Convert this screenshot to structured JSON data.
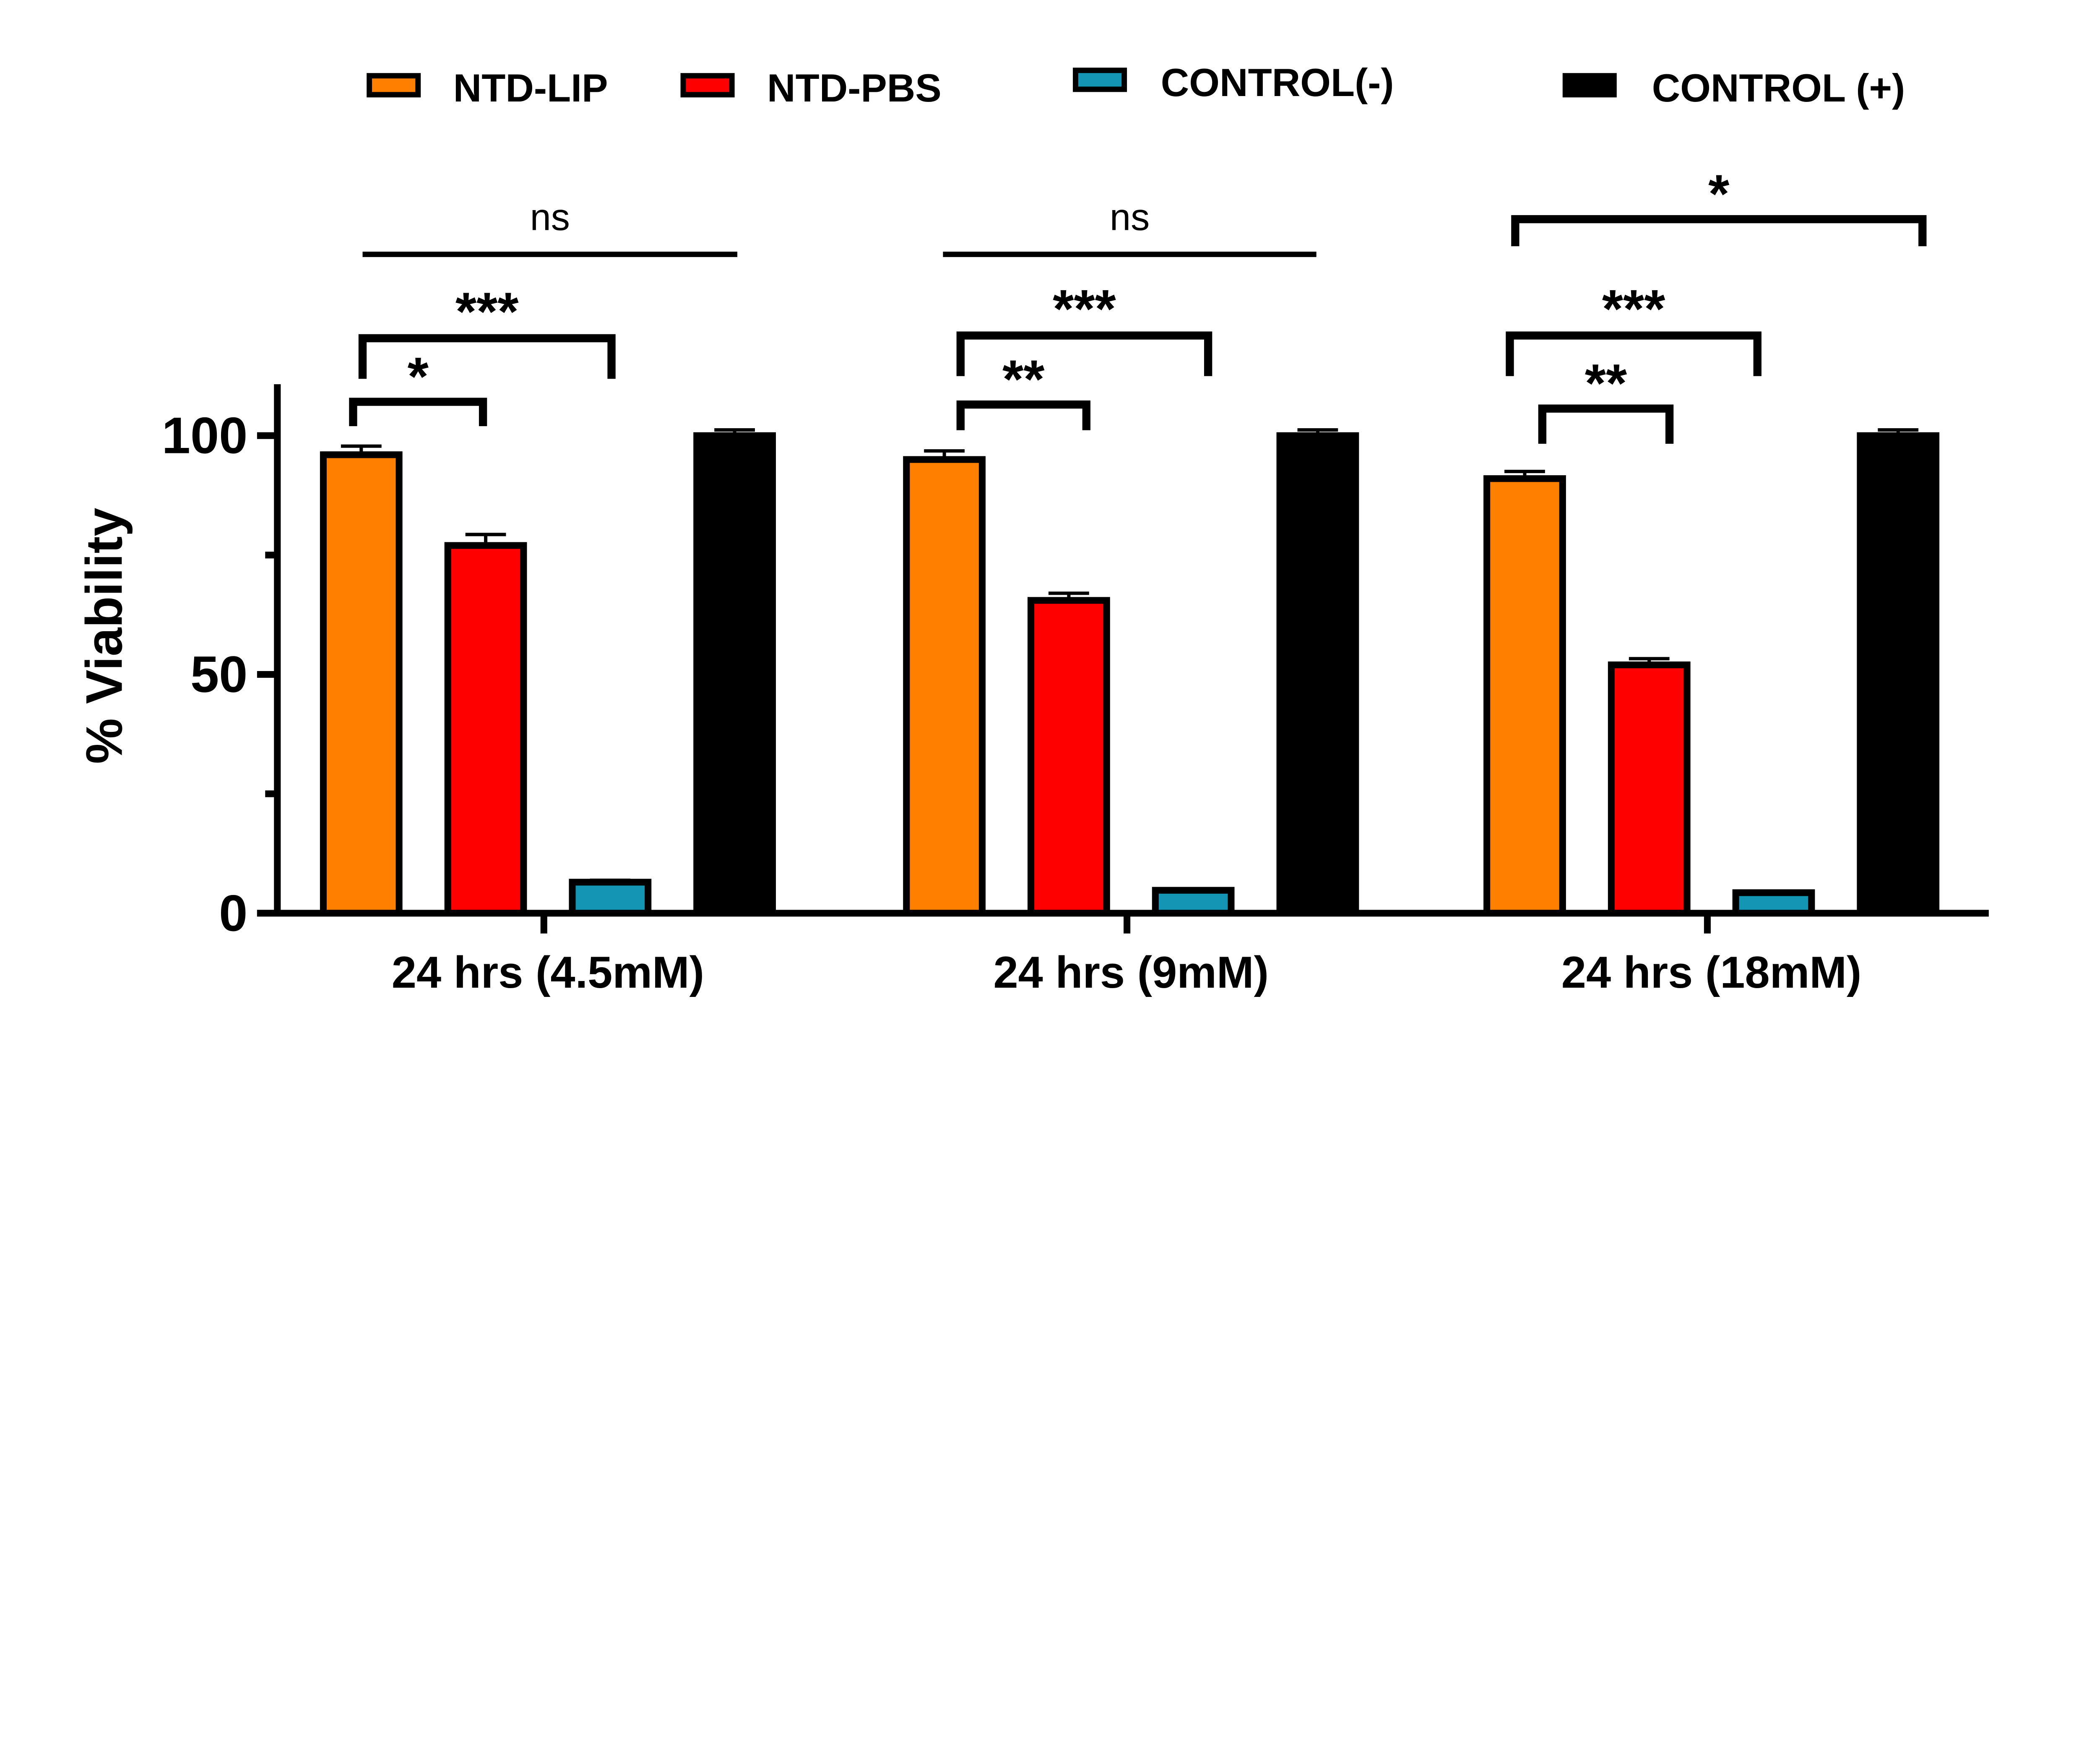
{
  "chart_data": {
    "type": "bar",
    "title": "",
    "xlabel": "",
    "ylabel": "% Viability",
    "ylim": [
      0,
      110
    ],
    "yticks_major": [
      0,
      50,
      100
    ],
    "yticks_minor": [
      25,
      75
    ],
    "grid": false,
    "legend_placement": "top",
    "categories": [
      "24 hrs (4.5mM)",
      "24 hrs (9mM)",
      "24 hrs (18mM)"
    ],
    "series": [
      {
        "name": "NTD-LIP",
        "color": "#ff8000",
        "values": [
          96,
          95,
          91
        ],
        "error": [
          1.8,
          1.8,
          1.5
        ]
      },
      {
        "name": "NTD-PBS",
        "color": "#ff0000",
        "values": [
          77,
          65.5,
          52
        ],
        "error": [
          2.3,
          1.5,
          1.3
        ]
      },
      {
        "name": "CONTROL(-)",
        "color": "#1296b4",
        "values": [
          6.5,
          4.8,
          4.3
        ],
        "error": [
          0.4,
          0.3,
          0.3
        ]
      },
      {
        "name": "CONTROL (+)",
        "color": "#000000",
        "values": [
          100,
          100,
          100
        ],
        "error": [
          1.2,
          1.2,
          1.2
        ]
      }
    ],
    "annotations": [
      {
        "group": 0,
        "from": "NTD-LIP",
        "to": "CONTROL (+)",
        "label": "ns",
        "style": "line"
      },
      {
        "group": 0,
        "from": "NTD-LIP",
        "to": "CONTROL(-)",
        "label": "***",
        "style": "bracket"
      },
      {
        "group": 0,
        "from": "NTD-LIP",
        "to": "NTD-PBS",
        "label": "*",
        "style": "bracket"
      },
      {
        "group": 1,
        "from": "NTD-LIP",
        "to": "CONTROL (+)",
        "label": "ns",
        "style": "line"
      },
      {
        "group": 1,
        "from": "NTD-LIP",
        "to": "CONTROL(-)",
        "label": "***",
        "style": "bracket"
      },
      {
        "group": 1,
        "from": "NTD-LIP",
        "to": "NTD-PBS",
        "label": "**",
        "style": "bracket"
      },
      {
        "group": 2,
        "from": "NTD-LIP",
        "to": "CONTROL (+)",
        "label": "*",
        "style": "bracket"
      },
      {
        "group": 2,
        "from": "NTD-LIP",
        "to": "CONTROL(-)",
        "label": "***",
        "style": "bracket"
      },
      {
        "group": 2,
        "from": "NTD-LIP",
        "to": "NTD-PBS",
        "label": "**",
        "style": "bracket"
      }
    ]
  }
}
